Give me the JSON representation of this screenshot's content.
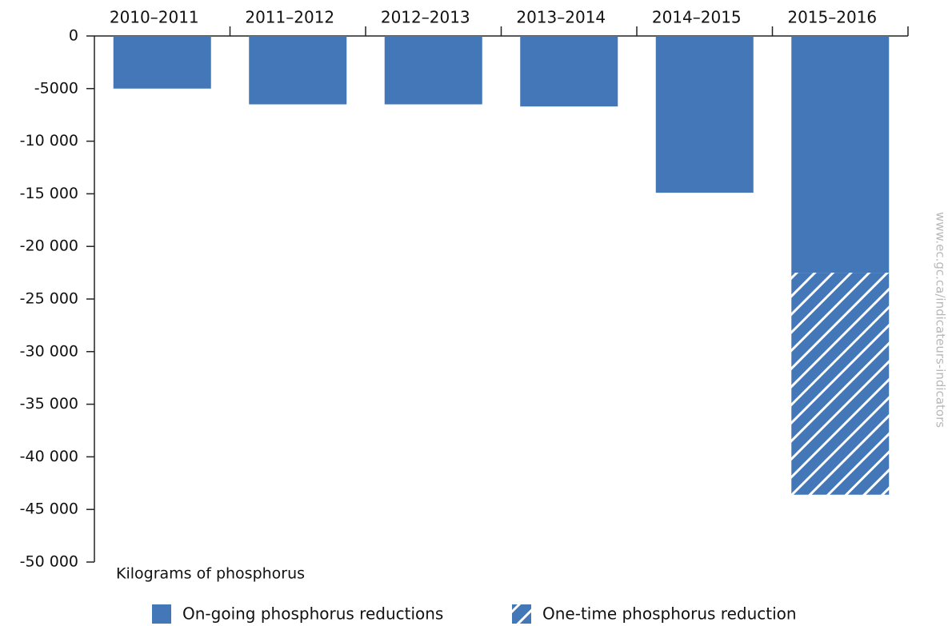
{
  "chart_data": {
    "type": "bar",
    "stacked": true,
    "categories": [
      "2010–2011",
      "2011–2012",
      "2012–2013",
      "2013–2014",
      "2014–2015",
      "2015–2016"
    ],
    "series": [
      {
        "name": "On-going phosphorus reductions",
        "color": "#4477b8",
        "values": [
          -5000,
          -6500,
          -6500,
          -6700,
          -14900,
          -22500
        ]
      },
      {
        "name": "One-time phosphorus reduction",
        "color": "#4477b8",
        "hatch": true,
        "values": [
          null,
          null,
          null,
          null,
          null,
          -21100
        ]
      }
    ],
    "ylim": [
      0,
      -50000
    ],
    "yticks": [
      0,
      -5000,
      {
        "value": -10000,
        "label": "-10 000"
      },
      {
        "value": -15000,
        "label": "-15 000"
      },
      {
        "value": -20000,
        "label": "-20 000"
      },
      {
        "value": -25000,
        "label": "-25 000"
      },
      {
        "value": -30000,
        "label": "-30 000"
      },
      {
        "value": -35000,
        "label": "-35 000"
      },
      {
        "value": -40000,
        "label": "-40 000"
      },
      {
        "value": -45000,
        "label": "-45 000"
      },
      {
        "value": -50000,
        "label": "-50 000"
      }
    ],
    "y_label": "Kilograms of phosphorus",
    "source": "www.ec.gc.ca/indicateurs-indicators",
    "legend": "bottom"
  }
}
